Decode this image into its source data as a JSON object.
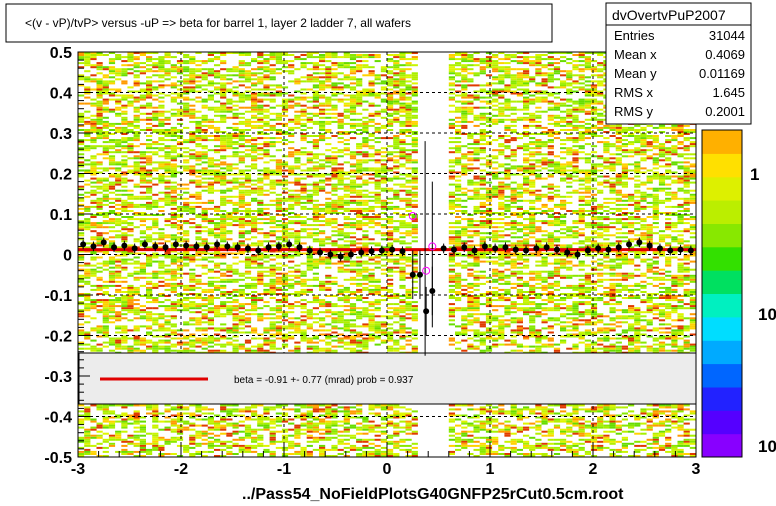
{
  "title": "<(v - vP)/tvP> versus  -uP => beta for barrel 1, layer 2 ladder 7, all wafers",
  "stats": {
    "name": "dvOvertvPuP2007",
    "rows": [
      {
        "label": "Entries",
        "value": "31044"
      },
      {
        "label": "Mean x",
        "value": "0.4069"
      },
      {
        "label": "Mean y",
        "value": "0.01169"
      },
      {
        "label": "RMS x",
        "value": "1.645"
      },
      {
        "label": "RMS y",
        "value": "0.2001"
      }
    ]
  },
  "fit_text": "beta =   -0.91 +-  0.77 (mrad) prob = 0.937",
  "footer": "../Pass54_NoFieldPlotsG40GNFP25rCut0.5cm.root",
  "palette_labels": [
    "1",
    "10",
    "10"
  ],
  "colors": {
    "fit": "#e00000",
    "points": "#000000",
    "open_points": "#ff00ff",
    "axis": "#000000"
  },
  "chart_data": {
    "type": "scatter",
    "xlim": [
      -3,
      3
    ],
    "ylim": [
      -0.5,
      0.5
    ],
    "x_ticks": [
      "-3",
      "-2",
      "-1",
      "0",
      "1",
      "2",
      "3"
    ],
    "y_ticks": [
      "0.5",
      "0.4",
      "0.3",
      "0.2",
      "0.1",
      "0",
      "-0.1",
      "-0.2",
      "-0.3",
      "-0.4",
      "-0.5"
    ],
    "grid": true,
    "fit_line": {
      "slope": 0.0,
      "intercept": 0.012
    },
    "profile": [
      {
        "x": -2.95,
        "y": 0.025
      },
      {
        "x": -2.85,
        "y": 0.02
      },
      {
        "x": -2.75,
        "y": 0.03
      },
      {
        "x": -2.65,
        "y": 0.018
      },
      {
        "x": -2.55,
        "y": 0.022
      },
      {
        "x": -2.45,
        "y": 0.015
      },
      {
        "x": -2.35,
        "y": 0.025
      },
      {
        "x": -2.25,
        "y": 0.02
      },
      {
        "x": -2.15,
        "y": 0.018
      },
      {
        "x": -2.05,
        "y": 0.025
      },
      {
        "x": -1.95,
        "y": 0.022
      },
      {
        "x": -1.85,
        "y": 0.02
      },
      {
        "x": -1.75,
        "y": 0.018
      },
      {
        "x": -1.65,
        "y": 0.025
      },
      {
        "x": -1.55,
        "y": 0.02
      },
      {
        "x": -1.45,
        "y": 0.018
      },
      {
        "x": -1.35,
        "y": 0.015
      },
      {
        "x": -1.25,
        "y": 0.01
      },
      {
        "x": -1.15,
        "y": 0.018
      },
      {
        "x": -1.05,
        "y": 0.02
      },
      {
        "x": -0.95,
        "y": 0.025
      },
      {
        "x": -0.85,
        "y": 0.018
      },
      {
        "x": -0.75,
        "y": 0.01
      },
      {
        "x": -0.65,
        "y": 0.005
      },
      {
        "x": -0.55,
        "y": 0.0
      },
      {
        "x": -0.45,
        "y": -0.005
      },
      {
        "x": -0.35,
        "y": 0.0
      },
      {
        "x": -0.25,
        "y": 0.005
      },
      {
        "x": -0.15,
        "y": 0.008
      },
      {
        "x": -0.05,
        "y": 0.01
      },
      {
        "x": 0.05,
        "y": 0.012
      },
      {
        "x": 0.15,
        "y": 0.008
      },
      {
        "x": 0.25,
        "y": -0.05
      },
      {
        "x": 0.32,
        "y": -0.05
      },
      {
        "x": 0.38,
        "y": -0.14
      },
      {
        "x": 0.44,
        "y": -0.09
      },
      {
        "x": 0.55,
        "y": 0.015
      },
      {
        "x": 0.65,
        "y": 0.012
      },
      {
        "x": 0.75,
        "y": 0.018
      },
      {
        "x": 0.85,
        "y": 0.01
      },
      {
        "x": 0.95,
        "y": 0.02
      },
      {
        "x": 1.05,
        "y": 0.015
      },
      {
        "x": 1.15,
        "y": 0.018
      },
      {
        "x": 1.25,
        "y": 0.012
      },
      {
        "x": 1.35,
        "y": 0.01
      },
      {
        "x": 1.45,
        "y": 0.015
      },
      {
        "x": 1.55,
        "y": 0.018
      },
      {
        "x": 1.65,
        "y": 0.012
      },
      {
        "x": 1.75,
        "y": 0.005
      },
      {
        "x": 1.85,
        "y": 0.0
      },
      {
        "x": 1.95,
        "y": 0.01
      },
      {
        "x": 2.05,
        "y": 0.015
      },
      {
        "x": 2.15,
        "y": 0.012
      },
      {
        "x": 2.25,
        "y": 0.018
      },
      {
        "x": 2.35,
        "y": 0.025
      },
      {
        "x": 2.45,
        "y": 0.03
      },
      {
        "x": 2.55,
        "y": 0.022
      },
      {
        "x": 2.65,
        "y": 0.015
      },
      {
        "x": 2.75,
        "y": 0.01
      },
      {
        "x": 2.85,
        "y": 0.012
      },
      {
        "x": 2.95,
        "y": 0.01
      }
    ],
    "open_points": [
      {
        "x": 0.25,
        "y": 0.095
      },
      {
        "x": 0.38,
        "y": -0.04
      },
      {
        "x": 0.44,
        "y": 0.02
      }
    ]
  }
}
